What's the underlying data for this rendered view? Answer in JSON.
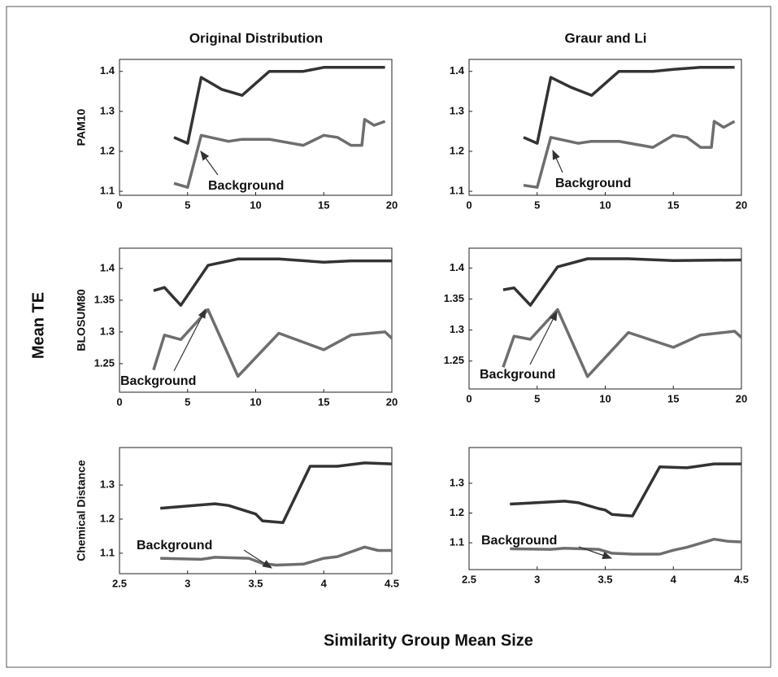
{
  "figure": {
    "column_titles": [
      "Original Distribution",
      "Graur and Li"
    ],
    "ylabel": "Mean TE",
    "xlabel": "Similarity Group Mean Size"
  },
  "chart_data": [
    {
      "type": "line",
      "ylabel": "PAM10",
      "annotation": "Background",
      "xlim": [
        0,
        20
      ],
      "xticks": [
        0,
        5,
        10,
        15,
        20
      ],
      "ylim": [
        1.09,
        1.43
      ],
      "yticks": [
        1.1,
        1.2,
        1.3,
        1.4
      ],
      "series": [
        {
          "color": "#333333",
          "x": [
            4,
            5,
            6,
            7.5,
            9,
            11,
            13.5,
            15,
            17,
            19.5
          ],
          "values": [
            1.235,
            1.22,
            1.385,
            1.355,
            1.34,
            1.4,
            1.4,
            1.41,
            1.41,
            1.41
          ]
        },
        {
          "color": "#6e6e6e",
          "x": [
            4,
            5,
            6,
            8,
            9,
            11,
            13.5,
            15,
            16,
            17,
            17.8,
            18,
            18.7,
            19.5
          ],
          "values": [
            1.12,
            1.11,
            1.24,
            1.225,
            1.23,
            1.23,
            1.215,
            1.24,
            1.235,
            1.215,
            1.215,
            1.28,
            1.265,
            1.275
          ]
        }
      ]
    },
    {
      "type": "line",
      "annotation": "Background",
      "xlim": [
        0,
        20
      ],
      "xticks": [
        0,
        5,
        10,
        15,
        20
      ],
      "ylim": [
        1.09,
        1.43
      ],
      "yticks": [
        1.1,
        1.2,
        1.3,
        1.4
      ],
      "series": [
        {
          "color": "#333333",
          "x": [
            4,
            5,
            6,
            7.5,
            9,
            11,
            13.5,
            15,
            17,
            19.5
          ],
          "values": [
            1.235,
            1.22,
            1.385,
            1.36,
            1.34,
            1.4,
            1.4,
            1.405,
            1.41,
            1.41
          ]
        },
        {
          "color": "#6e6e6e",
          "x": [
            4,
            5,
            6,
            8,
            9,
            11,
            13.5,
            15,
            16,
            17,
            17.8,
            18,
            18.7,
            19.5
          ],
          "values": [
            1.115,
            1.11,
            1.235,
            1.22,
            1.225,
            1.225,
            1.21,
            1.24,
            1.235,
            1.21,
            1.21,
            1.275,
            1.26,
            1.275
          ]
        }
      ]
    },
    {
      "type": "line",
      "ylabel": "BLOSUM80",
      "annotation": "Background",
      "xlim": [
        0,
        20
      ],
      "xticks": [
        0,
        5,
        10,
        15,
        20
      ],
      "ylim": [
        1.205,
        1.432
      ],
      "yticks": [
        1.25,
        1.3,
        1.35,
        1.4
      ],
      "series": [
        {
          "color": "#333333",
          "x": [
            2.5,
            3.3,
            4.5,
            6.5,
            8.7,
            11.7,
            15,
            17,
            20
          ],
          "values": [
            1.365,
            1.37,
            1.342,
            1.405,
            1.415,
            1.415,
            1.41,
            1.412,
            1.412
          ]
        },
        {
          "color": "#6e6e6e",
          "x": [
            2.5,
            3.3,
            4.5,
            6.5,
            8.7,
            11.7,
            15,
            17,
            19.5,
            20
          ],
          "values": [
            1.24,
            1.295,
            1.288,
            1.335,
            1.23,
            1.298,
            1.272,
            1.295,
            1.3,
            1.29
          ]
        }
      ]
    },
    {
      "type": "line",
      "annotation": "Background",
      "xlim": [
        0,
        20
      ],
      "xticks": [
        0,
        5,
        10,
        15,
        20
      ],
      "ylim": [
        1.205,
        1.432
      ],
      "yticks": [
        1.25,
        1.3,
        1.35,
        1.4
      ],
      "series": [
        {
          "color": "#333333",
          "x": [
            2.5,
            3.3,
            4.5,
            6.5,
            8.7,
            11.7,
            15,
            20
          ],
          "values": [
            1.365,
            1.368,
            1.34,
            1.402,
            1.415,
            1.415,
            1.412,
            1.413
          ]
        },
        {
          "color": "#6e6e6e",
          "x": [
            2.5,
            3.3,
            4.5,
            6.5,
            8.7,
            11.7,
            15,
            17,
            19.5,
            20
          ],
          "values": [
            1.24,
            1.29,
            1.285,
            1.333,
            1.225,
            1.296,
            1.272,
            1.292,
            1.298,
            1.288
          ]
        }
      ]
    },
    {
      "type": "line",
      "ylabel": "Chemical Distance",
      "annotation": "Background",
      "xlim": [
        2.5,
        4.5
      ],
      "xticks": [
        2.5,
        3,
        3.5,
        4,
        4.5
      ],
      "ylim": [
        1.04,
        1.41
      ],
      "yticks": [
        1.1,
        1.2,
        1.3
      ],
      "series": [
        {
          "color": "#333333",
          "x": [
            2.8,
            3.2,
            3.3,
            3.5,
            3.55,
            3.7,
            3.9,
            4.1,
            4.3,
            4.5
          ],
          "values": [
            1.232,
            1.245,
            1.24,
            1.215,
            1.195,
            1.19,
            1.355,
            1.355,
            1.365,
            1.362
          ]
        },
        {
          "color": "#6e6e6e",
          "x": [
            2.8,
            3.1,
            3.2,
            3.45,
            3.55,
            3.65,
            3.85,
            4,
            4.1,
            4.3,
            4.4,
            4.5
          ],
          "values": [
            1.085,
            1.082,
            1.088,
            1.085,
            1.07,
            1.065,
            1.068,
            1.085,
            1.09,
            1.118,
            1.108,
            1.108
          ]
        }
      ]
    },
    {
      "type": "line",
      "annotation": "Background",
      "xlim": [
        2.5,
        4.5
      ],
      "xticks": [
        2.5,
        3,
        3.5,
        4,
        4.5
      ],
      "ylim": [
        1.01,
        1.42
      ],
      "yticks": [
        1.1,
        1.2,
        1.3
      ],
      "series": [
        {
          "color": "#333333",
          "x": [
            2.8,
            3.2,
            3.3,
            3.45,
            3.5,
            3.55,
            3.7,
            3.9,
            4.1,
            4.3,
            4.5
          ],
          "values": [
            1.23,
            1.24,
            1.235,
            1.215,
            1.21,
            1.195,
            1.19,
            1.355,
            1.352,
            1.365,
            1.365
          ]
        },
        {
          "color": "#6e6e6e",
          "x": [
            2.8,
            3.1,
            3.2,
            3.45,
            3.55,
            3.7,
            3.9,
            4,
            4.1,
            4.3,
            4.4,
            4.5
          ],
          "values": [
            1.08,
            1.078,
            1.082,
            1.078,
            1.065,
            1.062,
            1.062,
            1.075,
            1.085,
            1.112,
            1.105,
            1.103
          ]
        }
      ]
    }
  ]
}
